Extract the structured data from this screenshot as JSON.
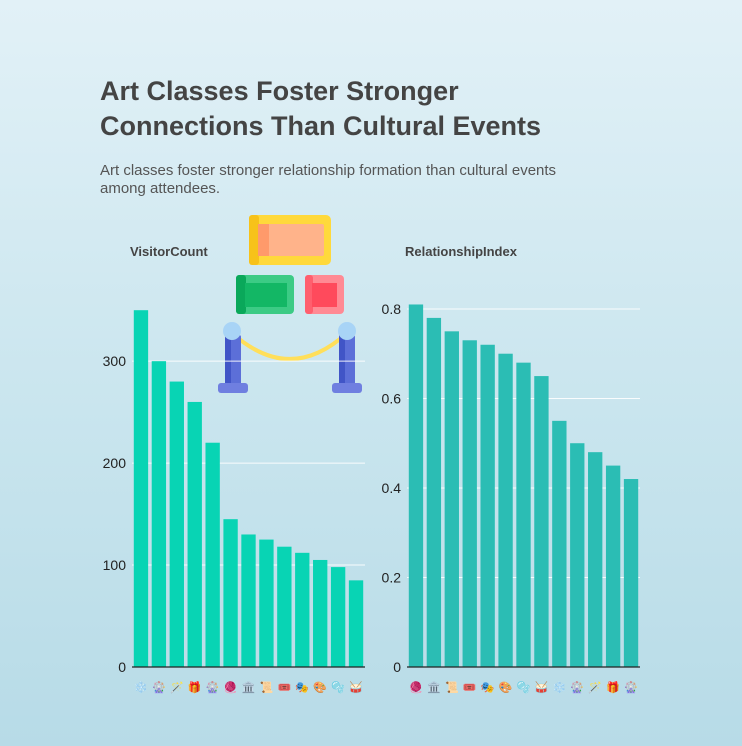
{
  "header": {
    "title": "Art Classes Foster Stronger Connections Than Cultural Events",
    "subtitle": "Art classes foster stronger relationship formation than cultural events among attendees."
  },
  "chart_data": [
    {
      "type": "bar",
      "title": "VisitorCount",
      "color": "#08d4b4",
      "ylim": [
        0,
        360
      ],
      "yticks": [
        0,
        100,
        200,
        300
      ],
      "grid": true,
      "categories": [
        "❄️",
        "🎡",
        "🪄",
        "🎁",
        "🎡",
        "🧶",
        "🏛️",
        "📜",
        "🎟️",
        "🎭",
        "🎨",
        "🫧",
        "🥁"
      ],
      "values": [
        350,
        300,
        280,
        260,
        220,
        145,
        130,
        125,
        118,
        112,
        105,
        98,
        85
      ]
    },
    {
      "type": "bar",
      "title": "RelationshipIndex",
      "color": "#2bbdb4",
      "ylim": [
        0,
        0.82
      ],
      "yticks": [
        0,
        0.2,
        0.4,
        0.6,
        0.8
      ],
      "grid": true,
      "categories": [
        "🧶",
        "🏛️",
        "📜",
        "🎟️",
        "🎭",
        "🎨",
        "🫧",
        "🥁",
        "❄️",
        "🎡",
        "🪄",
        "🎁",
        "🎡"
      ],
      "values": [
        0.81,
        0.78,
        0.75,
        0.73,
        0.72,
        0.7,
        0.68,
        0.65,
        0.55,
        0.5,
        0.48,
        0.45,
        0.42
      ]
    }
  ],
  "illustration": {
    "icon": "art-studio-icon",
    "colors": [
      "#ffd93b",
      "#ffb38a",
      "#1fbf6f",
      "#ff6b7a",
      "#5b6fd6",
      "#a7d3f5"
    ]
  }
}
